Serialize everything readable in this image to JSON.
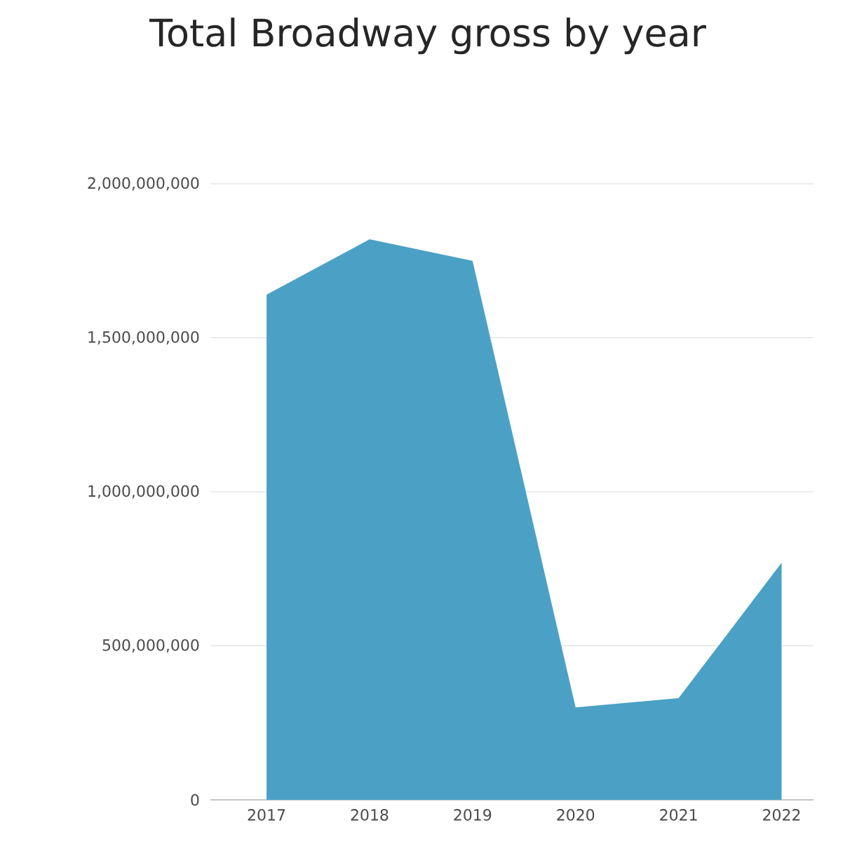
{
  "chart_data": {
    "type": "area",
    "title": "Total Broadway gross by year",
    "categories": [
      "2017",
      "2018",
      "2019",
      "2020",
      "2021",
      "2022"
    ],
    "values": [
      1640000000,
      1820000000,
      1750000000,
      300000000,
      330000000,
      770000000
    ],
    "color": "#4ba1c5",
    "ylim": [
      0,
      2000000000
    ],
    "yticks": [
      {
        "value": 0,
        "label": "0"
      },
      {
        "value": 500000000,
        "label": "500,000,000"
      },
      {
        "value": 1000000000,
        "label": "1,000,000,000"
      },
      {
        "value": 1500000000,
        "label": "1,500,000,000"
      },
      {
        "value": 2000000000,
        "label": "2,000,000,000"
      }
    ],
    "grid": "y"
  }
}
